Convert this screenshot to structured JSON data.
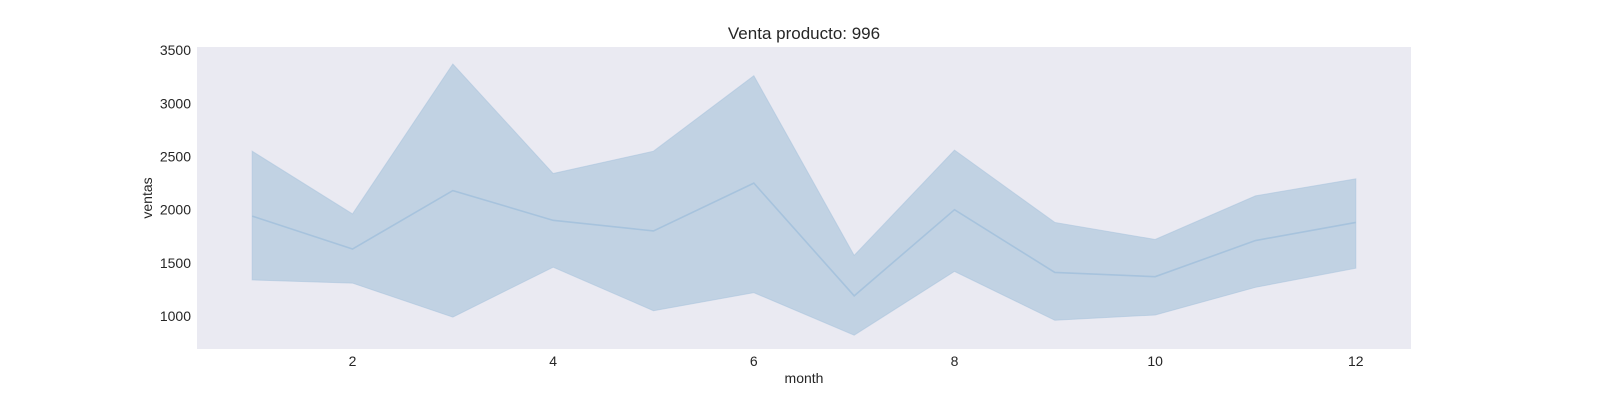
{
  "chart_data": {
    "type": "line",
    "title": "Venta producto: 996",
    "xlabel": "month",
    "ylabel": "ventas",
    "xlim": [
      0.45,
      12.55
    ],
    "ylim": [
      690,
      3530
    ],
    "xticks": [
      2,
      4,
      6,
      8,
      10,
      12
    ],
    "yticks": [
      1000,
      1500,
      2000,
      2500,
      3000,
      3500
    ],
    "grid": false,
    "legend": "none",
    "x": [
      1,
      2,
      3,
      4,
      5,
      6,
      7,
      8,
      9,
      10,
      11,
      12
    ],
    "series": [
      {
        "values": [
          1940,
          1630,
          2180,
          1900,
          1800,
          2250,
          1190,
          2000,
          1410,
          1370,
          1710,
          1880
        ],
        "ci_upper": [
          2550,
          1960,
          3370,
          2340,
          2550,
          3260,
          1570,
          2560,
          1880,
          1720,
          2130,
          2290
        ],
        "ci_lower": [
          1340,
          1310,
          990,
          1460,
          1050,
          1220,
          820,
          1420,
          960,
          1010,
          1270,
          1450
        ]
      }
    ],
    "colors": {
      "plot_background": "#eaeaf2",
      "line": "#a7c3dd",
      "band": "#c1d2e3",
      "text": "#262626"
    }
  }
}
